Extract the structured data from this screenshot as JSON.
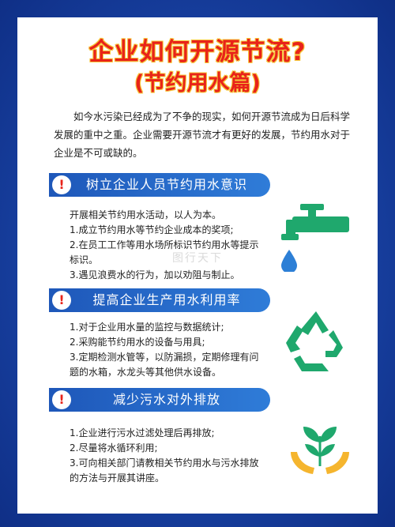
{
  "title": {
    "line1": "企业如何开源节流?",
    "line2": "(节约用水篇)"
  },
  "intro": "如今水污染已经成为了不争的现实，如何开源节流成为日后科学发展的重中之重。企业需要开源节流才有更好的发展，节约用水对于企业是不可或缺的。",
  "sections": [
    {
      "icon": "exclamation-icon",
      "title": "树立企业人员节约用水意识",
      "items": [
        "开展相关节约用水活动，以人为本。",
        "1.成立节约用水等节约企业成本的奖项;",
        "2.在员工工作等用水场所标识节约用水等提示标识。",
        "3.遇见浪费水的行为，加以劝阻与制止。"
      ]
    },
    {
      "icon": "exclamation-icon",
      "title": "提高企业生产用水利用率",
      "items": [
        "1.对于企业用水量的监控与数据统计;",
        "2.采购能节约用水的设备与用具;",
        "3.定期检测水管等，以防漏损，定期修理有问题的水箱，水龙头等其他供水设备。"
      ]
    },
    {
      "icon": "exclamation-icon",
      "title": "减少污水对外排放",
      "items": [
        "1.企业进行污水过滤处理后再排放;",
        "2.尽量将水循环利用;",
        "3.可向相关部门请教相关节约用水与污水排放的方法与开展其讲座。"
      ]
    }
  ],
  "watermark": "图行天下",
  "colors": {
    "accent_red": "#e8231a",
    "title_outline": "#f7c83a",
    "bar_blue": "#1e57b9",
    "icon_green": "#1fa86d"
  }
}
